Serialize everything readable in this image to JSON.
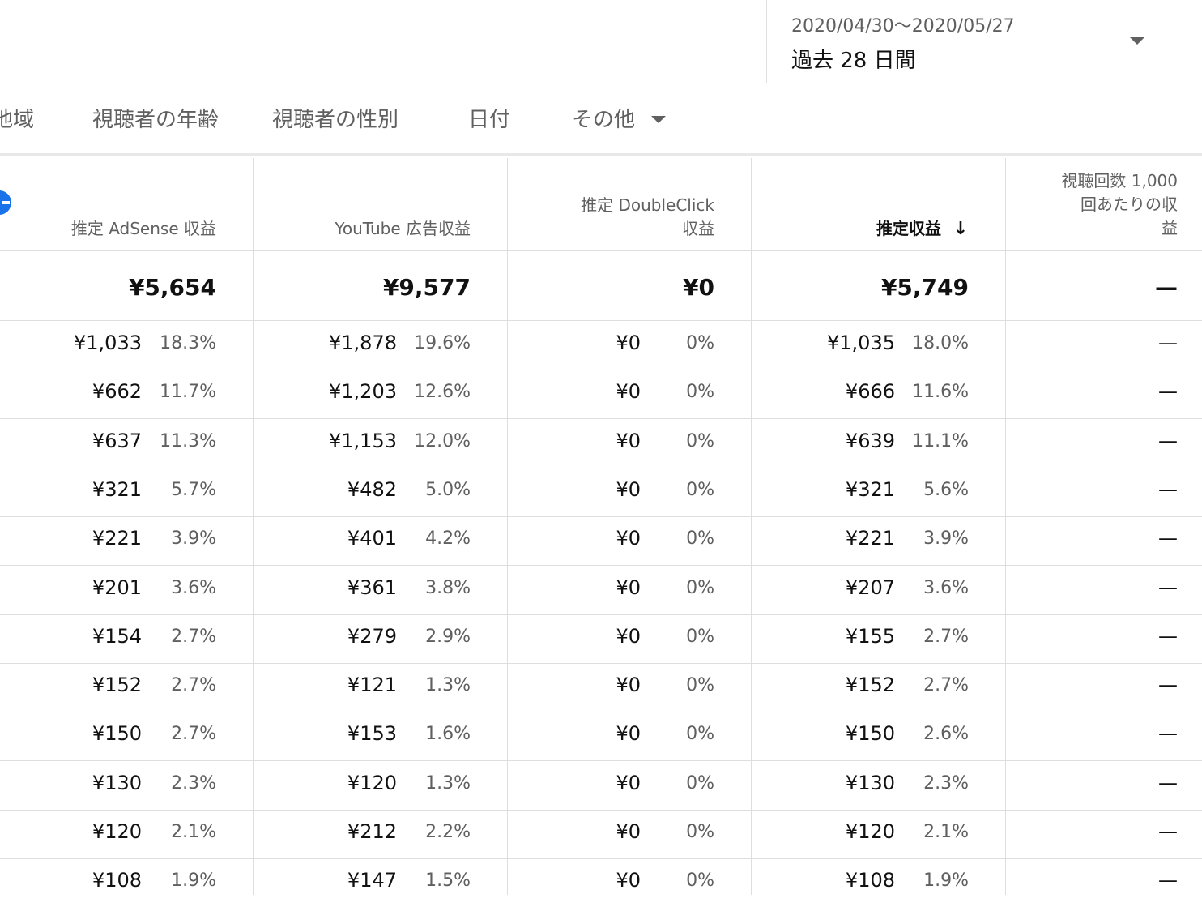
{
  "date_picker": {
    "range": "2020/04/30〜2020/05/27",
    "period": "過去 28 日間"
  },
  "tabs": [
    "地域",
    "視聴者の年齢",
    "視聴者の性別",
    "日付",
    "その他"
  ],
  "columns": [
    {
      "key": "adsense",
      "label": "推定 AdSense 収益",
      "lines": [
        "推定 AdSense 収益"
      ]
    },
    {
      "key": "youtube",
      "label": "YouTube 広告収益",
      "lines": [
        "YouTube 広告収益"
      ]
    },
    {
      "key": "doubleclick",
      "label": "推定 DoubleClick 収益",
      "lines": [
        "推定 DoubleClick",
        "収益"
      ]
    },
    {
      "key": "estimated",
      "label": "推定収益",
      "lines": [
        "推定収益"
      ],
      "sorted": true,
      "sort_icon": "arrow-down-icon",
      "sort_glyph": "↓"
    },
    {
      "key": "rpm",
      "label": "視聴回数 1,000 回あたりの収益",
      "lines": [
        "視聴回数 1,000",
        "回あたりの収",
        "益"
      ]
    }
  ],
  "totals": [
    "¥5,654",
    "¥9,577",
    "¥0",
    "¥5,749",
    "—"
  ],
  "rows": [
    {
      "adsense": [
        "¥1,033",
        "18.3%"
      ],
      "youtube": [
        "¥1,878",
        "19.6%"
      ],
      "doubleclick": [
        "¥0",
        "0%"
      ],
      "estimated": [
        "¥1,035",
        "18.0%"
      ],
      "rpm": "—"
    },
    {
      "adsense": [
        "¥662",
        "11.7%"
      ],
      "youtube": [
        "¥1,203",
        "12.6%"
      ],
      "doubleclick": [
        "¥0",
        "0%"
      ],
      "estimated": [
        "¥666",
        "11.6%"
      ],
      "rpm": "—"
    },
    {
      "adsense": [
        "¥637",
        "11.3%"
      ],
      "youtube": [
        "¥1,153",
        "12.0%"
      ],
      "doubleclick": [
        "¥0",
        "0%"
      ],
      "estimated": [
        "¥639",
        "11.1%"
      ],
      "rpm": "—"
    },
    {
      "adsense": [
        "¥321",
        "5.7%"
      ],
      "youtube": [
        "¥482",
        "5.0%"
      ],
      "doubleclick": [
        "¥0",
        "0%"
      ],
      "estimated": [
        "¥321",
        "5.6%"
      ],
      "rpm": "—"
    },
    {
      "adsense": [
        "¥221",
        "3.9%"
      ],
      "youtube": [
        "¥401",
        "4.2%"
      ],
      "doubleclick": [
        "¥0",
        "0%"
      ],
      "estimated": [
        "¥221",
        "3.9%"
      ],
      "rpm": "—"
    },
    {
      "adsense": [
        "¥201",
        "3.6%"
      ],
      "youtube": [
        "¥361",
        "3.8%"
      ],
      "doubleclick": [
        "¥0",
        "0%"
      ],
      "estimated": [
        "¥207",
        "3.6%"
      ],
      "rpm": "—"
    },
    {
      "adsense": [
        "¥154",
        "2.7%"
      ],
      "youtube": [
        "¥279",
        "2.9%"
      ],
      "doubleclick": [
        "¥0",
        "0%"
      ],
      "estimated": [
        "¥155",
        "2.7%"
      ],
      "rpm": "—"
    },
    {
      "adsense": [
        "¥152",
        "2.7%"
      ],
      "youtube": [
        "¥121",
        "1.3%"
      ],
      "doubleclick": [
        "¥0",
        "0%"
      ],
      "estimated": [
        "¥152",
        "2.7%"
      ],
      "rpm": "—"
    },
    {
      "adsense": [
        "¥150",
        "2.7%"
      ],
      "youtube": [
        "¥153",
        "1.6%"
      ],
      "doubleclick": [
        "¥0",
        "0%"
      ],
      "estimated": [
        "¥150",
        "2.6%"
      ],
      "rpm": "—"
    },
    {
      "adsense": [
        "¥130",
        "2.3%"
      ],
      "youtube": [
        "¥120",
        "1.3%"
      ],
      "doubleclick": [
        "¥0",
        "0%"
      ],
      "estimated": [
        "¥130",
        "2.3%"
      ],
      "rpm": "—"
    },
    {
      "adsense": [
        "¥120",
        "2.1%"
      ],
      "youtube": [
        "¥212",
        "2.2%"
      ],
      "doubleclick": [
        "¥0",
        "0%"
      ],
      "estimated": [
        "¥120",
        "2.1%"
      ],
      "rpm": "—"
    },
    {
      "adsense": [
        "¥108",
        "1.9%"
      ],
      "youtube": [
        "¥147",
        "1.5%"
      ],
      "doubleclick": [
        "¥0",
        "0%"
      ],
      "estimated": [
        "¥108",
        "1.9%"
      ],
      "rpm": "—"
    }
  ],
  "icons": {
    "add_column": "add-circle-icon",
    "dropdown": "caret-down-icon"
  },
  "colors": {
    "accent": "#1a73e8",
    "text": "#111111",
    "secondary_text": "#606060",
    "divider": "#dedede"
  }
}
